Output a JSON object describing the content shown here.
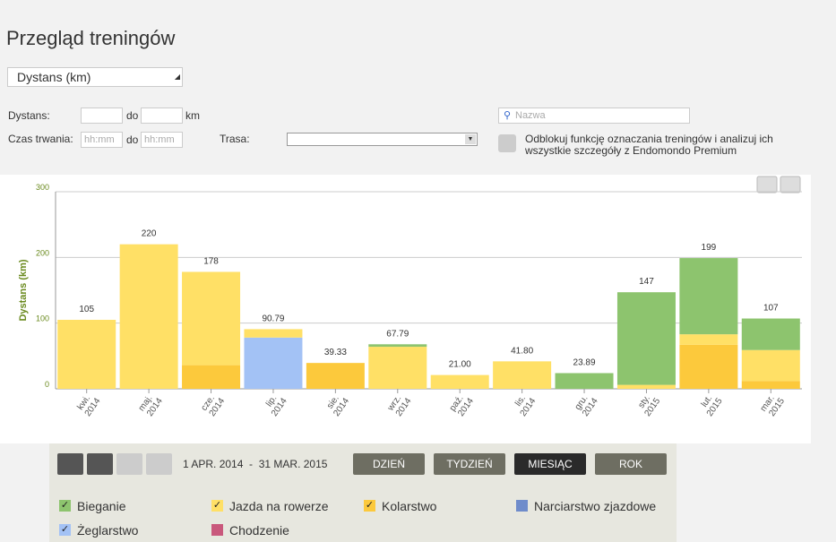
{
  "header": {
    "title": "Przegląd treningów",
    "metric": "Dystans (km)"
  },
  "filters": {
    "distance_label": "Dystans:",
    "to1": "do",
    "unit": "km",
    "duration_label": "Czas trwania:",
    "from_placeholder": "hh:mm",
    "to2": "do",
    "to_placeholder": "hh:mm",
    "route_label": "Trasa:",
    "search_placeholder": "Nazwa",
    "promo": "Odblokuj funkcję oznaczania treningów i analizuj ich wszystkie szczegóły z Endomondo Premium"
  },
  "chart_data": {
    "type": "stacked_bar",
    "y_label": "Dystans (km)",
    "categories": [
      [
        "kwi.",
        "2014"
      ],
      [
        "maj.",
        "2014"
      ],
      [
        "cze.",
        "2014"
      ],
      [
        "lip.",
        "2014"
      ],
      [
        "sie.",
        "2014"
      ],
      [
        "wrz.",
        "2014"
      ],
      [
        "paź.",
        "2014"
      ],
      [
        "lis.",
        "2014"
      ],
      [
        "gru.",
        "2014"
      ],
      [
        "sty.",
        "2015"
      ],
      [
        "lut.",
        "2015"
      ],
      [
        "mar.",
        "2015"
      ]
    ],
    "series": [
      {
        "name": "Bieganie",
        "color": "#8dc46e",
        "checked": true,
        "values": [
          null,
          null,
          null,
          null,
          null,
          3.79,
          null,
          null,
          23.89,
          141,
          116,
          48
        ]
      },
      {
        "name": "Jazda na rowerze",
        "color": "#ffe066",
        "checked": true,
        "values": [
          105,
          220,
          142,
          12.79,
          null,
          64,
          21,
          41.8,
          null,
          6,
          16,
          47
        ]
      },
      {
        "name": "Kolarstwo",
        "color": "#fcc93c",
        "checked": true,
        "values": [
          null,
          null,
          36,
          null,
          39.33,
          null,
          null,
          null,
          null,
          null,
          67,
          12
        ]
      },
      {
        "name": "Narciarstwo zjazdowe",
        "color": "#6f8ccb",
        "checked": false,
        "values": [
          null,
          null,
          null,
          null,
          null,
          null,
          null,
          null,
          null,
          null,
          null,
          null
        ]
      },
      {
        "name": "Żeglarstwo",
        "color": "#a3c2f5",
        "checked": true,
        "values": [
          null,
          null,
          null,
          78,
          null,
          null,
          null,
          null,
          null,
          null,
          null,
          null
        ]
      },
      {
        "name": "Chodzenie",
        "color": "#c9587c",
        "checked": false,
        "values": [
          null,
          null,
          null,
          null,
          null,
          null,
          null,
          null,
          null,
          null,
          null,
          null
        ]
      }
    ],
    "totals": {
      "values": [
        105,
        220,
        178,
        90.79,
        39.33,
        67.79,
        21,
        41.8,
        23.89,
        147,
        199,
        107
      ],
      "value_labels": [
        "105",
        "220",
        "178",
        "90.79",
        "39.33",
        "67.79",
        "21.00",
        "41.80",
        "23.89",
        "147",
        "199",
        "107"
      ]
    },
    "ylim": [
      0,
      300
    ],
    "yticks": [
      0,
      100,
      200,
      300
    ],
    "grid": true
  },
  "controls": {
    "range": "1 APR. 2014  -  31 MAR. 2015",
    "buttons": [
      {
        "label": "DZIEŃ",
        "active": false
      },
      {
        "label": "TYDZIEŃ",
        "active": false
      },
      {
        "label": "MIESIĄC",
        "active": true
      },
      {
        "label": "ROK",
        "active": false
      }
    ]
  }
}
